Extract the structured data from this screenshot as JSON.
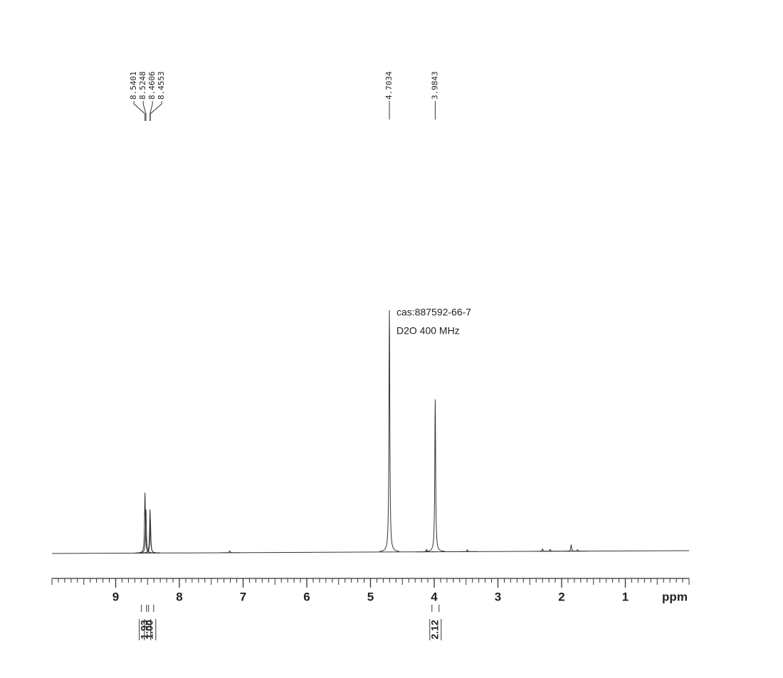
{
  "chart_data": {
    "type": "nmr",
    "annotations": [
      "cas:887592-66-7",
      "D2O  400 MHz"
    ],
    "xlabel": "ppm",
    "xlim": [
      10,
      0
    ],
    "xticks": [
      9,
      8,
      7,
      6,
      5,
      4,
      3,
      2,
      1
    ],
    "ylim": [
      0,
      100
    ],
    "color": "#333333",
    "labeled_peaks": {
      "x": [
        8.5401,
        8.5248,
        8.4606,
        8.4553,
        4.7034,
        3.9843
      ],
      "heights": [
        25,
        18,
        18,
        14,
        100,
        63
      ]
    },
    "other_peaks": {
      "x": [
        7.21,
        4.12,
        3.48,
        2.3,
        2.18,
        1.85,
        1.75
      ],
      "heights": [
        0.8,
        1,
        0.8,
        1,
        0.8,
        2.5,
        0.6
      ]
    },
    "integrals": {
      "values": [
        1.93,
        1.0,
        2.12
      ],
      "value_labels": [
        "1.93",
        "1.00",
        "2.12"
      ],
      "x": [
        8.54,
        8.46,
        3.98
      ]
    }
  }
}
